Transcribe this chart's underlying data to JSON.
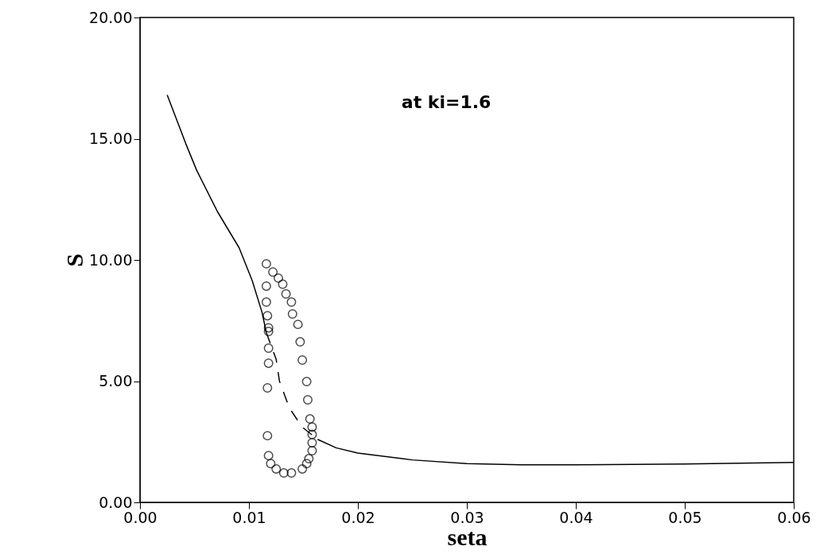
{
  "chart_data": {
    "type": "line",
    "xlabel": "seta",
    "ylabel": "S",
    "annotations": [
      "at ki=1.6"
    ],
    "xlim": [
      0,
      0.06
    ],
    "ylim": [
      0,
      20
    ],
    "xticks": [
      {
        "value": 0,
        "label": "0.00"
      },
      {
        "value": 0.01,
        "label": "0.01"
      },
      {
        "value": 0.02,
        "label": "0.02"
      },
      {
        "value": 0.03,
        "label": "0.03"
      },
      {
        "value": 0.04,
        "label": "0.04"
      },
      {
        "value": 0.05,
        "label": "0.05"
      },
      {
        "value": 0.06,
        "label": "0.06"
      }
    ],
    "yticks": [
      {
        "value": 0,
        "label": "0.00"
      },
      {
        "value": 5,
        "label": "5.00"
      },
      {
        "value": 10,
        "label": "10.00"
      },
      {
        "value": 15,
        "label": "15.00"
      },
      {
        "value": 20,
        "label": "20.00"
      }
    ],
    "series": [
      {
        "line_style": "solid",
        "color": "#000000",
        "x": [
          0.0025,
          0.0042,
          0.0052,
          0.0071,
          0.0091,
          0.0103,
          0.0112,
          0.0116
        ],
        "values": [
          16.8,
          14.8,
          13.7,
          12.0,
          10.5,
          9.15,
          7.84,
          7.0
        ]
      },
      {
        "line_style": "dashed",
        "color": "#000000",
        "x": [
          0.0116,
          0.0125,
          0.0128,
          0.0137,
          0.0149,
          0.0163
        ],
        "values": [
          7.0,
          5.9,
          5.0,
          3.9,
          3.1,
          2.6
        ]
      },
      {
        "line_style": "solid",
        "color": "#000000",
        "x": [
          0.0163,
          0.018,
          0.02,
          0.025,
          0.03,
          0.035,
          0.04,
          0.05,
          0.06
        ],
        "values": [
          2.6,
          2.25,
          2.03,
          1.75,
          1.6,
          1.55,
          1.55,
          1.58,
          1.65
        ]
      },
      {
        "type": "scatter",
        "marker": "circle",
        "color": "#000000",
        "x": [
          0.0116,
          0.0122,
          0.0127,
          0.0131,
          0.0134,
          0.0139,
          0.014,
          0.0145,
          0.0147,
          0.0149,
          0.0153,
          0.0154,
          0.0156,
          0.0158,
          0.0158,
          0.0158,
          0.0158,
          0.0155,
          0.0153,
          0.0149,
          0.0139,
          0.0132,
          0.0125,
          0.012,
          0.0118,
          0.0117,
          0.0117,
          0.0118,
          0.0118,
          0.0118,
          0.0118,
          0.0117,
          0.0116,
          0.0116
        ],
        "values": [
          9.84,
          9.5,
          9.25,
          9.0,
          8.6,
          8.26,
          7.77,
          7.34,
          6.62,
          5.87,
          4.98,
          4.23,
          3.44,
          3.11,
          2.8,
          2.46,
          2.13,
          1.8,
          1.6,
          1.38,
          1.21,
          1.21,
          1.38,
          1.6,
          1.93,
          2.75,
          4.72,
          5.74,
          6.36,
          7.05,
          7.2,
          7.7,
          8.26,
          8.92
        ]
      }
    ]
  }
}
